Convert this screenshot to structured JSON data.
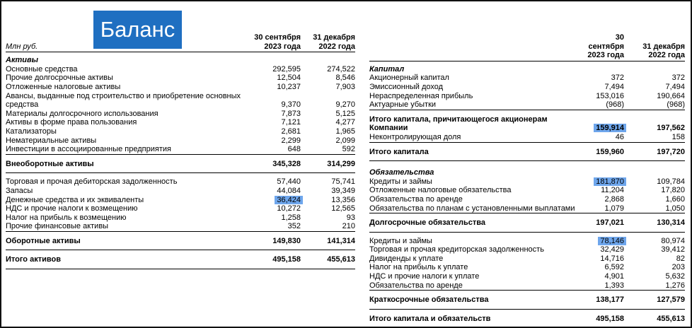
{
  "title": "Баланс",
  "left": {
    "header": {
      "unit": "Млн руб.",
      "columns": [
        [
          "30 сентября",
          "2023 года"
        ],
        [
          "31 декабря",
          "2022 года"
        ]
      ]
    },
    "rows": [
      {
        "kind": "section",
        "label": "Активы"
      },
      {
        "kind": "item",
        "label": "Основные средства",
        "values": [
          "292,595",
          "274,522"
        ]
      },
      {
        "kind": "item",
        "label": "Прочие долгосрочные активы",
        "values": [
          "12,504",
          "8,546"
        ]
      },
      {
        "kind": "item",
        "label": "Отложенные налоговые активы",
        "values": [
          "10,237",
          "7,903"
        ]
      },
      {
        "kind": "item",
        "label": "Авансы, выданные под строительство и приобретение основных средства",
        "values": [
          "9,370",
          "9,270"
        ]
      },
      {
        "kind": "item",
        "label": "Материалы долгосрочного использования",
        "values": [
          "7,873",
          "5,125"
        ]
      },
      {
        "kind": "item",
        "label": "Активы в форме права пользования",
        "values": [
          "7,121",
          "4,277"
        ]
      },
      {
        "kind": "item",
        "label": "Катализаторы",
        "values": [
          "2,681",
          "1,965"
        ]
      },
      {
        "kind": "item",
        "label": "Нематериальные активы",
        "values": [
          "2,299",
          "2,099"
        ]
      },
      {
        "kind": "item",
        "label": "Инвестиции в ассоциированные предприятия",
        "values": [
          "648",
          "592"
        ]
      },
      {
        "kind": "total",
        "label": "Внеоборотные активы",
        "values": [
          "345,328",
          "314,299"
        ]
      },
      {
        "kind": "item",
        "label": "Торговая и прочая дебиторская задолженность",
        "values": [
          "57,440",
          "75,741"
        ]
      },
      {
        "kind": "item",
        "label": "Запасы",
        "values": [
          "44,084",
          "39,349"
        ]
      },
      {
        "kind": "item",
        "label": "Денежные средства и их эквиваленты",
        "values": [
          "36,424",
          "13,356"
        ],
        "highlight": true
      },
      {
        "kind": "item",
        "label": "НДС и прочие налоги к возмещению",
        "values": [
          "10,272",
          "12,565"
        ]
      },
      {
        "kind": "item",
        "label": "Налог на прибыль к возмещению",
        "values": [
          "1,258",
          "93"
        ]
      },
      {
        "kind": "item",
        "label": "Прочие финансовые активы",
        "values": [
          "352",
          "210"
        ]
      },
      {
        "kind": "total",
        "label": "Оборотные активы",
        "values": [
          "149,830",
          "141,314"
        ]
      },
      {
        "kind": "total",
        "label": "Итого активов",
        "values": [
          "495,158",
          "455,613"
        ]
      }
    ]
  },
  "right": {
    "header": {
      "columns": [
        [
          "30 сентября",
          "2023 года"
        ],
        [
          "31 декабря",
          "2022 года"
        ]
      ]
    },
    "rows": [
      {
        "kind": "section",
        "label": "Капитал"
      },
      {
        "kind": "item",
        "label": "Акционерный капитал",
        "values": [
          "372",
          "372"
        ]
      },
      {
        "kind": "item",
        "label": "Эмиссионный доход",
        "values": [
          "7,494",
          "7,494"
        ]
      },
      {
        "kind": "item",
        "label": "Нераспределенная прибыль",
        "values": [
          "153,016",
          "190,664"
        ]
      },
      {
        "kind": "item",
        "label": "Актуарные убытки",
        "values": [
          "(968)",
          "(968)"
        ]
      },
      {
        "kind": "lead",
        "label": "Итого капитала, причитающегося акционерам Компании",
        "values": [
          "159,914",
          "197,562"
        ],
        "highlight": true
      },
      {
        "kind": "item",
        "label": "Неконтролирующая доля",
        "values": [
          "46",
          "158"
        ]
      },
      {
        "kind": "total",
        "label": "Итого капитала",
        "values": [
          "159,960",
          "197,720"
        ]
      },
      {
        "kind": "section",
        "label": "Обязательства"
      },
      {
        "kind": "item",
        "label": "Кредиты и займы",
        "values": [
          "181,870",
          "109,784"
        ],
        "highlight": true
      },
      {
        "kind": "item",
        "label": "Отложенные налоговые обязательства",
        "values": [
          "11,204",
          "17,820"
        ]
      },
      {
        "kind": "item",
        "label": "Обязательства по аренде",
        "values": [
          "2,868",
          "1,660"
        ]
      },
      {
        "kind": "item",
        "label": "Обязательства по планам с установленными выплатами",
        "values": [
          "1,079",
          "1,050"
        ]
      },
      {
        "kind": "total",
        "label": "Долгосрочные обязательства",
        "values": [
          "197,021",
          "130,314"
        ]
      },
      {
        "kind": "item",
        "label": "Кредиты и займы",
        "values": [
          "78,146",
          "80,974"
        ],
        "highlight": true
      },
      {
        "kind": "item",
        "label": "Торговая и прочая кредиторская задолженность",
        "values": [
          "32,429",
          "39,412"
        ]
      },
      {
        "kind": "item",
        "label": "Дивиденды к уплате",
        "values": [
          "14,716",
          "82"
        ]
      },
      {
        "kind": "item",
        "label": "Налог на прибыль к уплате",
        "values": [
          "6,592",
          "203"
        ]
      },
      {
        "kind": "item",
        "label": "НДС и прочие налоги к уплате",
        "values": [
          "4,901",
          "5,632"
        ]
      },
      {
        "kind": "item",
        "label": "Обязательства по аренде",
        "values": [
          "1,393",
          "1,276"
        ]
      },
      {
        "kind": "total",
        "label": "Краткосрочные обязательства",
        "values": [
          "138,177",
          "127,579"
        ]
      },
      {
        "kind": "total",
        "label": "Итого капитала и обязательств",
        "values": [
          "495,158",
          "455,613"
        ]
      }
    ]
  }
}
